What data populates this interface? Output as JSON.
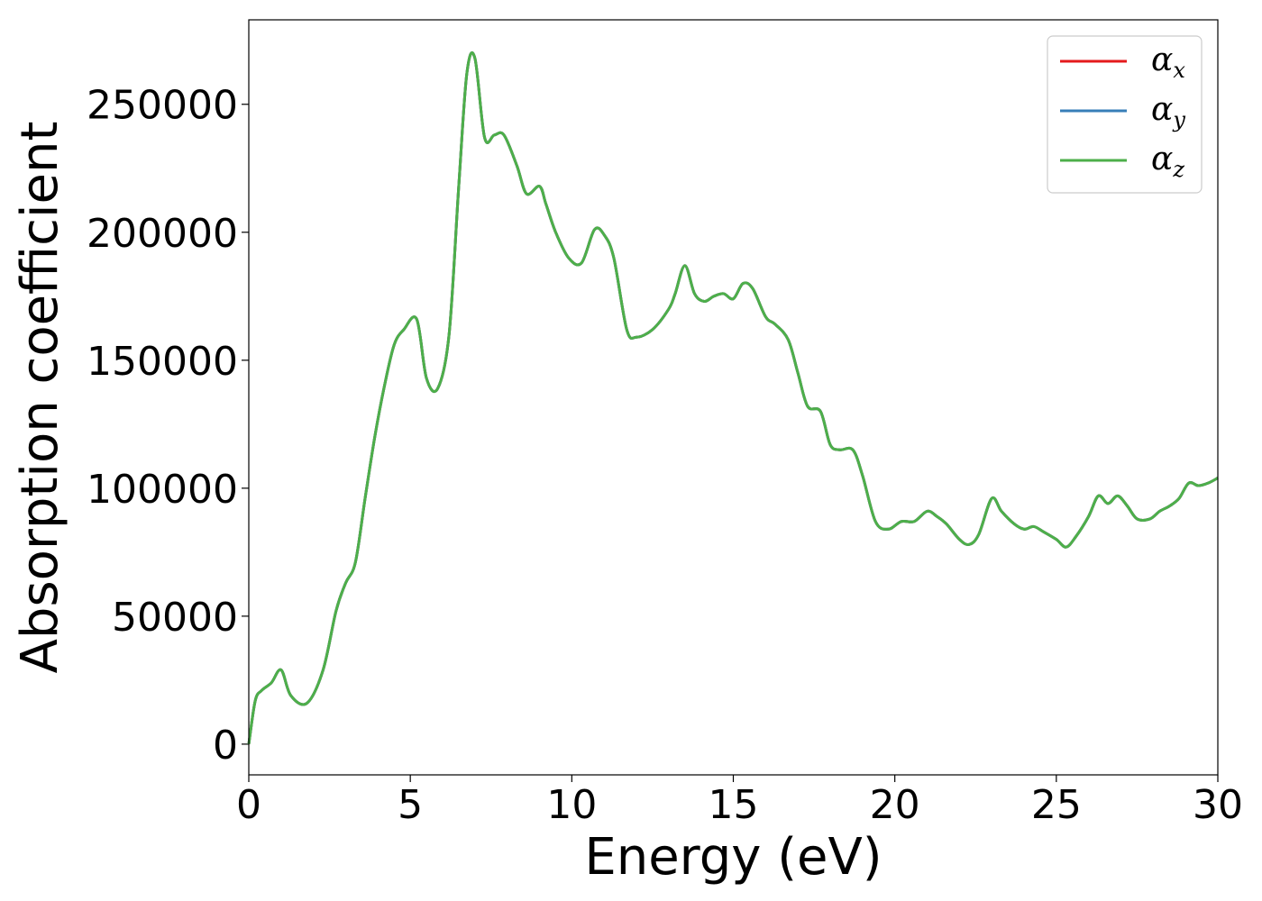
{
  "chart_data": {
    "type": "line",
    "title": "",
    "xlabel": "Energy (eV)",
    "ylabel": "Absorption coefficient",
    "xlim": [
      0,
      30
    ],
    "ylim": [
      -12000,
      283000
    ],
    "xticks": [
      0,
      5,
      10,
      15,
      20,
      25,
      30
    ],
    "xtick_labels": [
      "0",
      "5",
      "10",
      "15",
      "20",
      "25",
      "30"
    ],
    "yticks": [
      0,
      50000,
      100000,
      150000,
      200000,
      250000
    ],
    "ytick_labels": [
      "0",
      "50000",
      "100000",
      "150000",
      "200000",
      "250000"
    ],
    "grid": false,
    "legend_position": "top-right",
    "x": [
      0,
      0.2,
      0.4,
      0.7,
      1.0,
      1.3,
      1.8,
      2.3,
      2.7,
      3.0,
      3.3,
      3.6,
      3.9,
      4.2,
      4.5,
      4.8,
      5.2,
      5.5,
      5.85,
      6.2,
      6.5,
      6.75,
      7.0,
      7.3,
      7.6,
      7.9,
      8.3,
      8.6,
      9.0,
      9.2,
      9.5,
      9.9,
      10.3,
      10.7,
      11.0,
      11.3,
      11.7,
      12.0,
      12.5,
      13.0,
      13.2,
      13.5,
      13.8,
      14.1,
      14.4,
      14.7,
      15.0,
      15.3,
      15.6,
      16.0,
      16.3,
      16.7,
      17.0,
      17.3,
      17.7,
      18.0,
      18.3,
      18.7,
      19.0,
      19.4,
      19.8,
      20.2,
      20.6,
      21.0,
      21.3,
      21.6,
      22.0,
      22.3,
      22.6,
      23.0,
      23.3,
      23.7,
      24.0,
      24.3,
      24.6,
      25.0,
      25.3,
      25.6,
      26.0,
      26.3,
      26.6,
      26.9,
      27.2,
      27.5,
      27.9,
      28.2,
      28.5,
      28.8,
      29.1,
      29.4,
      29.7,
      30.0
    ],
    "series": [
      {
        "name": "x",
        "color": "#e41a1c",
        "y": [
          0,
          17000,
          21000,
          24000,
          29000,
          19000,
          16000,
          29000,
          52000,
          63000,
          71000,
          96000,
          120000,
          140000,
          156000,
          162000,
          166000,
          143000,
          139000,
          160000,
          218000,
          262000,
          268000,
          237000,
          238000,
          238000,
          226000,
          215000,
          218000,
          211000,
          200000,
          190000,
          188000,
          201000,
          199000,
          190000,
          162000,
          159000,
          162000,
          170000,
          176000,
          187000,
          176000,
          173000,
          175000,
          176000,
          174000,
          180000,
          178000,
          167000,
          164000,
          158000,
          145000,
          132000,
          130000,
          117000,
          115000,
          115000,
          105000,
          87000,
          84000,
          87000,
          87000,
          91000,
          89000,
          86000,
          80000,
          78000,
          82000,
          96000,
          91000,
          86000,
          84000,
          85000,
          83000,
          80000,
          77000,
          81000,
          89000,
          97000,
          94000,
          97000,
          93000,
          88000,
          88000,
          91000,
          93000,
          96000,
          102000,
          101000,
          102000,
          104000
        ]
      },
      {
        "name": "y",
        "color": "#377eb8",
        "y": [
          0,
          17000,
          21000,
          24000,
          29000,
          19000,
          16000,
          29000,
          52000,
          63000,
          71000,
          96000,
          120000,
          140000,
          156000,
          162000,
          166000,
          143000,
          139000,
          160000,
          218000,
          262000,
          268000,
          237000,
          238000,
          238000,
          226000,
          215000,
          218000,
          211000,
          200000,
          190000,
          188000,
          201000,
          199000,
          190000,
          162000,
          159000,
          162000,
          170000,
          176000,
          187000,
          176000,
          173000,
          175000,
          176000,
          174000,
          180000,
          178000,
          167000,
          164000,
          158000,
          145000,
          132000,
          130000,
          117000,
          115000,
          115000,
          105000,
          87000,
          84000,
          87000,
          87000,
          91000,
          89000,
          86000,
          80000,
          78000,
          82000,
          96000,
          91000,
          86000,
          84000,
          85000,
          83000,
          80000,
          77000,
          81000,
          89000,
          97000,
          94000,
          97000,
          93000,
          88000,
          88000,
          91000,
          93000,
          96000,
          102000,
          101000,
          102000,
          104000
        ]
      },
      {
        "name": "z",
        "color": "#4daf4a",
        "y": [
          0,
          17000,
          21000,
          24000,
          29000,
          19000,
          16000,
          29000,
          52000,
          63000,
          71000,
          96000,
          120000,
          140000,
          156000,
          162000,
          166000,
          143000,
          139000,
          160000,
          218000,
          262000,
          268000,
          237000,
          238000,
          238000,
          226000,
          215000,
          218000,
          211000,
          200000,
          190000,
          188000,
          201000,
          199000,
          190000,
          162000,
          159000,
          162000,
          170000,
          176000,
          187000,
          176000,
          173000,
          175000,
          176000,
          174000,
          180000,
          178000,
          167000,
          164000,
          158000,
          145000,
          132000,
          130000,
          117000,
          115000,
          115000,
          105000,
          87000,
          84000,
          87000,
          87000,
          91000,
          89000,
          86000,
          80000,
          78000,
          82000,
          96000,
          91000,
          86000,
          84000,
          85000,
          83000,
          80000,
          77000,
          81000,
          89000,
          97000,
          94000,
          97000,
          93000,
          88000,
          88000,
          91000,
          93000,
          96000,
          102000,
          101000,
          102000,
          104000
        ]
      }
    ]
  }
}
